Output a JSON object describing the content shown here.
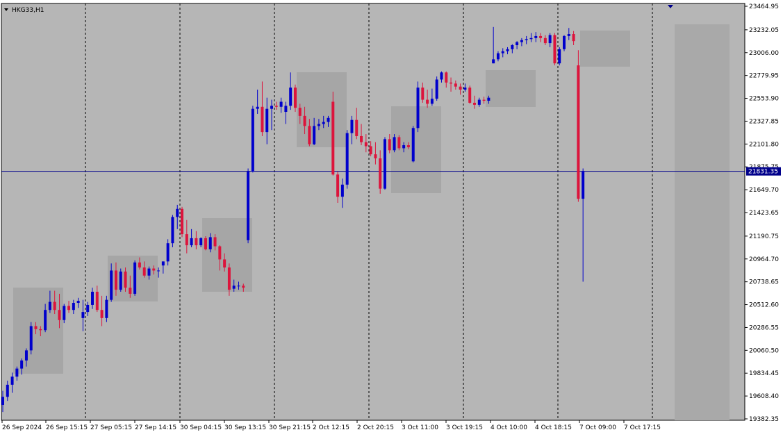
{
  "window": {
    "symbol_label": "HKG33,H1",
    "current_price_label": "21831.35"
  },
  "colors": {
    "plot_background": "#b6b6b6",
    "frame": "#ffffff",
    "bull": "#0000cc",
    "bear": "#dc143c",
    "price_line": "#00008b",
    "session_box": "#a6a6a6",
    "text": "#000000"
  },
  "chart_data": {
    "type": "candlestick",
    "title": "HKG33,H1",
    "ylim": [
      19382.35,
      23464.95
    ],
    "y_ticks": [
      "23464.95",
      "23232.05",
      "23006.00",
      "22779.95",
      "22553.90",
      "22327.85",
      "22101.80",
      "21875.75",
      "21649.70",
      "21423.65",
      "21190.75",
      "20964.70",
      "20738.65",
      "20512.60",
      "20286.55",
      "20060.50",
      "19834.45",
      "19608.40",
      "19382.35"
    ],
    "x_ticks": [
      "26 Sep 2024",
      "26 Sep 15:15",
      "27 Sep 05:15",
      "27 Sep 14:15",
      "30 Sep 04:15",
      "30 Sep 13:15",
      "30 Sep 21:15",
      "2 Oct 12:15",
      "2 Oct 20:15",
      "3 Oct 11:00",
      "3 Oct 19:15",
      "4 Oct 10:00",
      "4 Oct 18:15",
      "7 Oct 09:00",
      "7 Oct 17:15"
    ],
    "current_price": 21831.35,
    "grid": "vertical dashed session separators",
    "candles": [
      {
        "o": 19520,
        "h": 19660,
        "l": 19450,
        "c": 19600
      },
      {
        "o": 19600,
        "h": 19760,
        "l": 19560,
        "c": 19720
      },
      {
        "o": 19720,
        "h": 19840,
        "l": 19640,
        "c": 19800
      },
      {
        "o": 19800,
        "h": 19900,
        "l": 19760,
        "c": 19880
      },
      {
        "o": 19880,
        "h": 19980,
        "l": 19820,
        "c": 19960
      },
      {
        "o": 19960,
        "h": 20080,
        "l": 19900,
        "c": 20060
      },
      {
        "o": 20060,
        "h": 20340,
        "l": 20020,
        "c": 20300
      },
      {
        "o": 20300,
        "h": 20340,
        "l": 20220,
        "c": 20270
      },
      {
        "o": 20270,
        "h": 20300,
        "l": 20200,
        "c": 20260
      },
      {
        "o": 20260,
        "h": 20520,
        "l": 20240,
        "c": 20460
      },
      {
        "o": 20460,
        "h": 20650,
        "l": 20430,
        "c": 20540
      },
      {
        "o": 20540,
        "h": 20650,
        "l": 20420,
        "c": 20460
      },
      {
        "o": 20460,
        "h": 20620,
        "l": 20280,
        "c": 20360
      },
      {
        "o": 20360,
        "h": 20520,
        "l": 20330,
        "c": 20500
      },
      {
        "o": 20500,
        "h": 20550,
        "l": 20430,
        "c": 20460
      },
      {
        "o": 20460,
        "h": 20560,
        "l": 20420,
        "c": 20530
      },
      {
        "o": 20530,
        "h": 20580,
        "l": 20480,
        "c": 20550
      },
      {
        "o": 20380,
        "h": 20560,
        "l": 20250,
        "c": 20440
      },
      {
        "o": 20440,
        "h": 20540,
        "l": 20400,
        "c": 20510
      },
      {
        "o": 20510,
        "h": 20680,
        "l": 20470,
        "c": 20640
      },
      {
        "o": 20640,
        "h": 20700,
        "l": 20440,
        "c": 20460
      },
      {
        "o": 20460,
        "h": 20600,
        "l": 20300,
        "c": 20380
      },
      {
        "o": 20380,
        "h": 20600,
        "l": 20340,
        "c": 20560
      },
      {
        "o": 20560,
        "h": 20920,
        "l": 20540,
        "c": 20850
      },
      {
        "o": 20850,
        "h": 20930,
        "l": 20600,
        "c": 20660
      },
      {
        "o": 20660,
        "h": 20870,
        "l": 20640,
        "c": 20840
      },
      {
        "o": 20840,
        "h": 20880,
        "l": 20640,
        "c": 20680
      },
      {
        "o": 20680,
        "h": 20800,
        "l": 20580,
        "c": 20620
      },
      {
        "o": 20620,
        "h": 20950,
        "l": 20600,
        "c": 20930
      },
      {
        "o": 20930,
        "h": 20980,
        "l": 20860,
        "c": 20880
      },
      {
        "o": 20880,
        "h": 20940,
        "l": 20780,
        "c": 20800
      },
      {
        "o": 20800,
        "h": 20890,
        "l": 20760,
        "c": 20870
      },
      {
        "o": 20870,
        "h": 20900,
        "l": 20810,
        "c": 20850
      },
      {
        "o": 20850,
        "h": 20880,
        "l": 20780,
        "c": 20850
      },
      {
        "o": 20900,
        "h": 20940,
        "l": 20820,
        "c": 20940
      },
      {
        "o": 20940,
        "h": 21160,
        "l": 20900,
        "c": 21120
      },
      {
        "o": 21120,
        "h": 21400,
        "l": 21080,
        "c": 21380
      },
      {
        "o": 21380,
        "h": 21500,
        "l": 21260,
        "c": 21460
      },
      {
        "o": 21460,
        "h": 21480,
        "l": 21180,
        "c": 21210
      },
      {
        "o": 21210,
        "h": 21350,
        "l": 21020,
        "c": 21100
      },
      {
        "o": 21100,
        "h": 21260,
        "l": 21080,
        "c": 21170
      },
      {
        "o": 21170,
        "h": 21240,
        "l": 21060,
        "c": 21100
      },
      {
        "o": 21100,
        "h": 21180,
        "l": 21080,
        "c": 21170
      },
      {
        "o": 21170,
        "h": 21190,
        "l": 21050,
        "c": 21060
      },
      {
        "o": 21060,
        "h": 21220,
        "l": 21030,
        "c": 21180
      },
      {
        "o": 21180,
        "h": 21210,
        "l": 21050,
        "c": 21090
      },
      {
        "o": 21090,
        "h": 21100,
        "l": 20850,
        "c": 20960
      },
      {
        "o": 20960,
        "h": 21020,
        "l": 20840,
        "c": 20880
      },
      {
        "o": 20880,
        "h": 20920,
        "l": 20600,
        "c": 20660
      },
      {
        "o": 20670,
        "h": 20760,
        "l": 20640,
        "c": 20700
      },
      {
        "o": 20700,
        "h": 20740,
        "l": 20660,
        "c": 20700
      },
      {
        "o": 20700,
        "h": 20720,
        "l": 20640,
        "c": 20680
      },
      {
        "o": 21150,
        "h": 21860,
        "l": 21120,
        "c": 21830
      },
      {
        "o": 21830,
        "h": 22480,
        "l": 21820,
        "c": 22450
      },
      {
        "o": 22450,
        "h": 22640,
        "l": 22400,
        "c": 22470
      },
      {
        "o": 22470,
        "h": 22720,
        "l": 22180,
        "c": 22220
      },
      {
        "o": 22220,
        "h": 22560,
        "l": 22100,
        "c": 22450
      },
      {
        "o": 22450,
        "h": 22540,
        "l": 22240,
        "c": 22480
      },
      {
        "o": 22480,
        "h": 22520,
        "l": 22440,
        "c": 22470
      },
      {
        "o": 22470,
        "h": 22560,
        "l": 22410,
        "c": 22520
      },
      {
        "o": 22420,
        "h": 22520,
        "l": 22300,
        "c": 22480
      },
      {
        "o": 22480,
        "h": 22810,
        "l": 22440,
        "c": 22660
      },
      {
        "o": 22660,
        "h": 22690,
        "l": 22420,
        "c": 22460
      },
      {
        "o": 22460,
        "h": 22500,
        "l": 22300,
        "c": 22380
      },
      {
        "o": 22380,
        "h": 22470,
        "l": 22200,
        "c": 22280
      },
      {
        "o": 22280,
        "h": 22350,
        "l": 22080,
        "c": 22100
      },
      {
        "o": 22100,
        "h": 22360,
        "l": 22090,
        "c": 22280
      },
      {
        "o": 22280,
        "h": 22350,
        "l": 22240,
        "c": 22300
      },
      {
        "o": 22300,
        "h": 22380,
        "l": 22260,
        "c": 22320
      },
      {
        "o": 22320,
        "h": 22380,
        "l": 22270,
        "c": 22360
      },
      {
        "o": 22520,
        "h": 22620,
        "l": 21790,
        "c": 21800
      },
      {
        "o": 21800,
        "h": 21830,
        "l": 21520,
        "c": 21580
      },
      {
        "o": 21580,
        "h": 21760,
        "l": 21470,
        "c": 21700
      },
      {
        "o": 21700,
        "h": 22240,
        "l": 21660,
        "c": 22210
      },
      {
        "o": 22210,
        "h": 22380,
        "l": 22100,
        "c": 22340
      },
      {
        "o": 22340,
        "h": 22460,
        "l": 22150,
        "c": 22180
      },
      {
        "o": 22180,
        "h": 22300,
        "l": 22090,
        "c": 22120
      },
      {
        "o": 22120,
        "h": 22200,
        "l": 22020,
        "c": 22080
      },
      {
        "o": 22080,
        "h": 22130,
        "l": 21980,
        "c": 22000
      },
      {
        "o": 22000,
        "h": 22120,
        "l": 21900,
        "c": 21960
      },
      {
        "o": 21960,
        "h": 22040,
        "l": 21610,
        "c": 21660
      },
      {
        "o": 21660,
        "h": 22170,
        "l": 21650,
        "c": 22150
      },
      {
        "o": 22150,
        "h": 22200,
        "l": 22010,
        "c": 22040
      },
      {
        "o": 22040,
        "h": 22200,
        "l": 22020,
        "c": 22170
      },
      {
        "o": 22170,
        "h": 22190,
        "l": 22040,
        "c": 22060
      },
      {
        "o": 22060,
        "h": 22120,
        "l": 22020,
        "c": 22090
      },
      {
        "o": 22090,
        "h": 22120,
        "l": 22050,
        "c": 22070
      },
      {
        "o": 21930,
        "h": 22280,
        "l": 21920,
        "c": 22260
      },
      {
        "o": 22260,
        "h": 22720,
        "l": 22220,
        "c": 22660
      },
      {
        "o": 22660,
        "h": 22710,
        "l": 22510,
        "c": 22540
      },
      {
        "o": 22540,
        "h": 22640,
        "l": 22460,
        "c": 22500
      },
      {
        "o": 22500,
        "h": 22650,
        "l": 22480,
        "c": 22550
      },
      {
        "o": 22550,
        "h": 22770,
        "l": 22530,
        "c": 22740
      },
      {
        "o": 22740,
        "h": 22820,
        "l": 22710,
        "c": 22810
      },
      {
        "o": 22810,
        "h": 22820,
        "l": 22660,
        "c": 22710
      },
      {
        "o": 22710,
        "h": 22760,
        "l": 22620,
        "c": 22700
      },
      {
        "o": 22700,
        "h": 22730,
        "l": 22640,
        "c": 22670
      },
      {
        "o": 22670,
        "h": 22700,
        "l": 22590,
        "c": 22640
      },
      {
        "o": 22640,
        "h": 22700,
        "l": 22620,
        "c": 22660
      },
      {
        "o": 22660,
        "h": 22680,
        "l": 22500,
        "c": 22510
      },
      {
        "o": 22510,
        "h": 22580,
        "l": 22450,
        "c": 22490
      },
      {
        "o": 22490,
        "h": 22560,
        "l": 22470,
        "c": 22540
      },
      {
        "o": 22540,
        "h": 22570,
        "l": 22500,
        "c": 22530
      },
      {
        "o": 22530,
        "h": 22580,
        "l": 22500,
        "c": 22560
      },
      {
        "o": 22900,
        "h": 23260,
        "l": 22900,
        "c": 22940
      },
      {
        "o": 22940,
        "h": 23020,
        "l": 22920,
        "c": 23000
      },
      {
        "o": 23000,
        "h": 23050,
        "l": 22960,
        "c": 23020
      },
      {
        "o": 23020,
        "h": 23060,
        "l": 22990,
        "c": 23040
      },
      {
        "o": 23040,
        "h": 23090,
        "l": 23000,
        "c": 23080
      },
      {
        "o": 23080,
        "h": 23120,
        "l": 23040,
        "c": 23110
      },
      {
        "o": 23110,
        "h": 23150,
        "l": 23070,
        "c": 23130
      },
      {
        "o": 23130,
        "h": 23170,
        "l": 23090,
        "c": 23140
      },
      {
        "o": 23140,
        "h": 23200,
        "l": 23110,
        "c": 23150
      },
      {
        "o": 23150,
        "h": 23210,
        "l": 23110,
        "c": 23170
      },
      {
        "o": 23170,
        "h": 23200,
        "l": 23110,
        "c": 23150
      },
      {
        "o": 23150,
        "h": 23180,
        "l": 23080,
        "c": 23100
      },
      {
        "o": 23100,
        "h": 23200,
        "l": 23060,
        "c": 23180
      },
      {
        "o": 23180,
        "h": 23200,
        "l": 22880,
        "c": 22900
      },
      {
        "o": 22900,
        "h": 23060,
        "l": 22880,
        "c": 23040
      },
      {
        "o": 23040,
        "h": 23180,
        "l": 23020,
        "c": 23170
      },
      {
        "o": 23170,
        "h": 23250,
        "l": 23130,
        "c": 23190
      },
      {
        "o": 23190,
        "h": 23220,
        "l": 23080,
        "c": 23120
      },
      {
        "o": 22880,
        "h": 23030,
        "l": 21530,
        "c": 21560
      },
      {
        "o": 21560,
        "h": 21860,
        "l": 20740,
        "c": 21831.35
      }
    ]
  }
}
